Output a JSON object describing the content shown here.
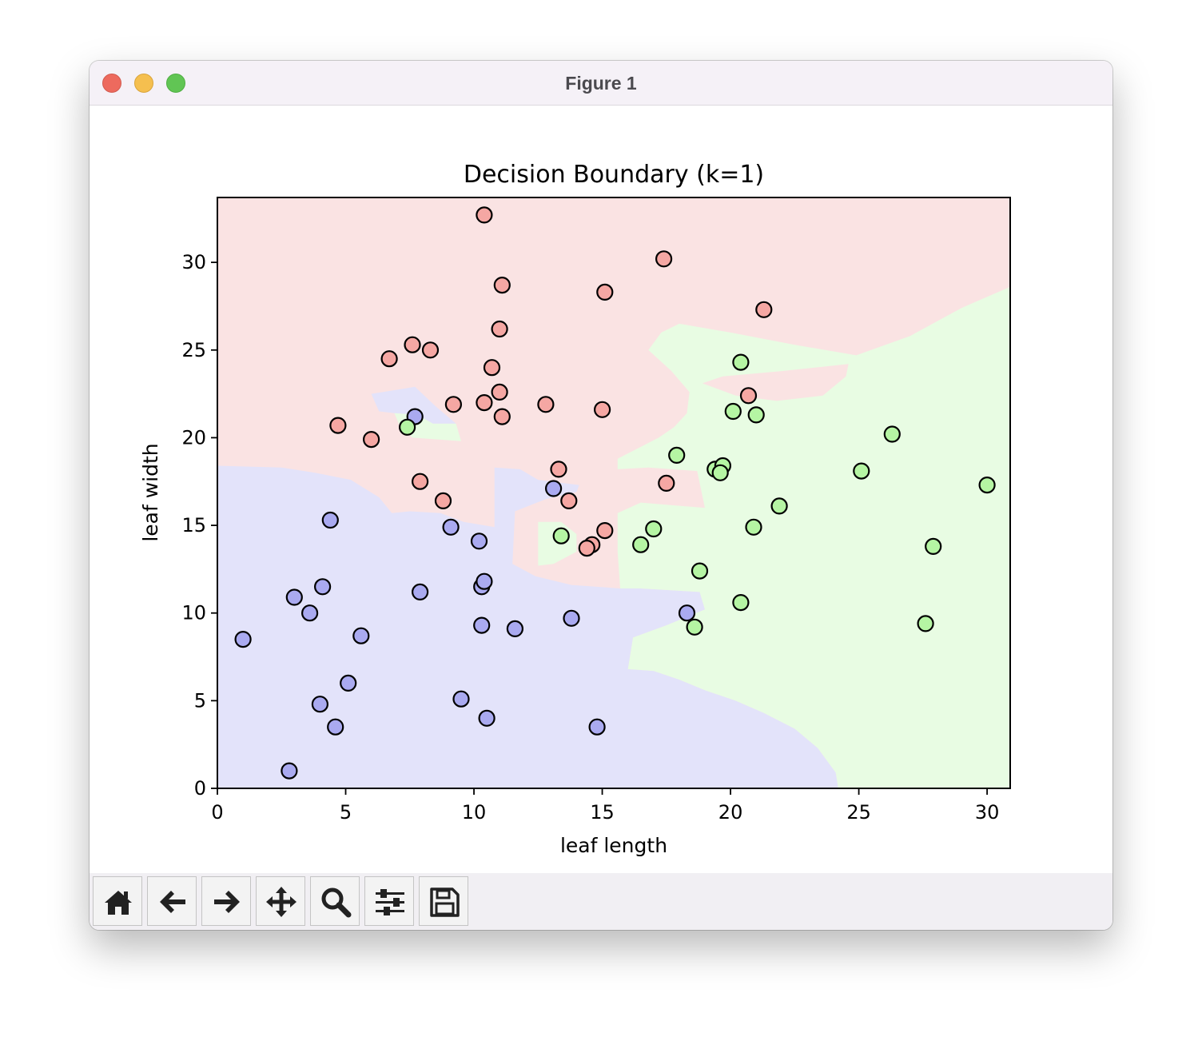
{
  "window": {
    "title": "Figure 1"
  },
  "toolbar": {
    "buttons": [
      {
        "name": "home-button",
        "icon": "home-icon"
      },
      {
        "name": "back-button",
        "icon": "arrow-left-icon"
      },
      {
        "name": "forward-button",
        "icon": "arrow-right-icon"
      },
      {
        "name": "pan-button",
        "icon": "move-icon"
      },
      {
        "name": "zoom-button",
        "icon": "zoom-icon"
      },
      {
        "name": "configure-subplots-button",
        "icon": "sliders-icon"
      },
      {
        "name": "save-button",
        "icon": "save-icon"
      }
    ]
  },
  "chart_data": {
    "type": "scatter",
    "title": "Decision Boundary (k=1)",
    "xlabel": "leaf length",
    "ylabel": "leaf width",
    "xlim": [
      0,
      30.9
    ],
    "ylim": [
      0,
      33.7
    ],
    "xticks": [
      "0",
      "5",
      "10",
      "15",
      "20",
      "25",
      "30"
    ],
    "yticks": [
      "0",
      "5",
      "10",
      "15",
      "20",
      "25",
      "30"
    ],
    "grid": false,
    "colors": {
      "red_region": "#fae3e3",
      "blue_region": "#e3e3fa",
      "green_region": "#e8fce3",
      "red_point": "#f5a7a3",
      "blue_point": "#aaaaf0",
      "green_point": "#b5f5a3",
      "edge": "#000000"
    },
    "regions": {
      "background_class": "red",
      "blue": [
        [
          [
            0,
            18.4
          ],
          [
            2.5,
            18.3
          ],
          [
            3.8,
            18
          ],
          [
            5.2,
            17.6
          ],
          [
            6.3,
            16.6
          ],
          [
            6.8,
            15.7
          ],
          [
            7.5,
            15.8
          ],
          [
            8.7,
            15.7
          ],
          [
            9.6,
            15.2
          ],
          [
            10.8,
            14.9
          ],
          [
            10.8,
            18.3
          ],
          [
            11.8,
            18.2
          ],
          [
            12.5,
            17.6
          ],
          [
            14.1,
            17.3
          ],
          [
            14,
            16.9
          ],
          [
            12.8,
            16.5
          ],
          [
            11.6,
            15.8
          ],
          [
            11.5,
            12.8
          ],
          [
            12.4,
            12.1
          ],
          [
            13.8,
            11.6
          ],
          [
            15.7,
            11.4
          ],
          [
            16.5,
            11.4
          ],
          [
            18.8,
            11.2
          ],
          [
            19,
            10.2
          ],
          [
            17.5,
            9.3
          ],
          [
            16.2,
            8.6
          ],
          [
            16,
            6.8
          ],
          [
            17,
            6.7
          ],
          [
            18,
            6.2
          ],
          [
            19,
            5.6
          ],
          [
            20.2,
            5
          ],
          [
            21.3,
            4.3
          ],
          [
            22.5,
            3.4
          ],
          [
            23.4,
            2.3
          ],
          [
            24.1,
            0.9
          ],
          [
            24.2,
            0
          ],
          [
            0,
            0
          ]
        ],
        [
          [
            6,
            22.5
          ],
          [
            7.7,
            22.9
          ],
          [
            8.5,
            21.8
          ],
          [
            9.3,
            20.8
          ],
          [
            8.4,
            20.8
          ],
          [
            7.8,
            21.3
          ],
          [
            6.9,
            21.4
          ],
          [
            6.3,
            21.5
          ]
        ]
      ],
      "green": [
        [
          [
            16.8,
            25
          ],
          [
            17.3,
            26
          ],
          [
            18,
            26.5
          ],
          [
            20,
            26
          ],
          [
            22.5,
            25.3
          ],
          [
            24.9,
            24.7
          ],
          [
            27,
            25.8
          ],
          [
            29,
            27.4
          ],
          [
            30.9,
            28.6
          ],
          [
            30.9,
            0
          ],
          [
            24.2,
            0
          ],
          [
            24.1,
            0.9
          ],
          [
            23.4,
            2.3
          ],
          [
            22.5,
            3.4
          ],
          [
            21.3,
            4.3
          ],
          [
            20.2,
            5
          ],
          [
            19,
            5.6
          ],
          [
            18,
            6.2
          ],
          [
            17,
            6.7
          ],
          [
            16,
            6.8
          ],
          [
            16.2,
            8.6
          ],
          [
            17.5,
            9.3
          ],
          [
            19,
            10.2
          ],
          [
            18.8,
            11.2
          ],
          [
            16.5,
            11.4
          ],
          [
            15.7,
            11.4
          ],
          [
            15.6,
            13.5
          ],
          [
            15.6,
            15.7
          ],
          [
            16.5,
            16.3
          ],
          [
            18.1,
            16.1
          ],
          [
            19,
            16
          ],
          [
            18.7,
            18.1
          ],
          [
            16.8,
            18.3
          ],
          [
            15.6,
            18.2
          ],
          [
            15.6,
            18.8
          ],
          [
            17.2,
            20
          ],
          [
            17.8,
            20.6
          ],
          [
            18.3,
            21.4
          ],
          [
            18.4,
            22.6
          ],
          [
            17.7,
            23.8
          ]
        ],
        [
          [
            12.5,
            15.2
          ],
          [
            13.4,
            15.2
          ],
          [
            14,
            14.5
          ],
          [
            14,
            13.5
          ],
          [
            13.1,
            12.8
          ],
          [
            12.5,
            12.7
          ]
        ],
        [
          [
            6.9,
            21.4
          ],
          [
            7.8,
            21.3
          ],
          [
            8.4,
            20.8
          ],
          [
            9.3,
            20.8
          ],
          [
            9.5,
            19.8
          ],
          [
            7.6,
            20
          ],
          [
            7.1,
            20.7
          ]
        ]
      ],
      "red_islands": [
        [
          [
            18.9,
            23.1
          ],
          [
            19.7,
            23.5
          ],
          [
            22,
            23.8
          ],
          [
            24.6,
            24.2
          ],
          [
            24.5,
            23.5
          ],
          [
            23.6,
            22.4
          ],
          [
            21.8,
            22.1
          ],
          [
            20.2,
            22.4
          ]
        ]
      ]
    },
    "series": [
      {
        "class": "red",
        "points": [
          [
            10.4,
            32.7
          ],
          [
            17.4,
            30.2
          ],
          [
            11.1,
            28.7
          ],
          [
            15.1,
            28.3
          ],
          [
            21.3,
            27.3
          ],
          [
            11.0,
            26.2
          ],
          [
            7.6,
            25.3
          ],
          [
            8.3,
            25.0
          ],
          [
            6.7,
            24.5
          ],
          [
            10.7,
            24.0
          ],
          [
            11.0,
            22.6
          ],
          [
            10.4,
            22.0
          ],
          [
            9.2,
            21.9
          ],
          [
            12.8,
            21.9
          ],
          [
            15.0,
            21.6
          ],
          [
            11.1,
            21.2
          ],
          [
            20.7,
            22.4
          ],
          [
            4.7,
            20.7
          ],
          [
            6.0,
            19.9
          ],
          [
            13.3,
            18.2
          ],
          [
            7.9,
            17.5
          ],
          [
            17.5,
            17.4
          ],
          [
            8.8,
            16.4
          ],
          [
            13.7,
            16.4
          ],
          [
            15.1,
            14.7
          ],
          [
            14.6,
            13.9
          ],
          [
            14.4,
            13.7
          ]
        ]
      },
      {
        "class": "blue",
        "points": [
          [
            7.7,
            21.2
          ],
          [
            13.1,
            17.1
          ],
          [
            4.4,
            15.3
          ],
          [
            9.1,
            14.9
          ],
          [
            10.2,
            14.1
          ],
          [
            4.1,
            11.5
          ],
          [
            10.3,
            11.5
          ],
          [
            10.4,
            11.8
          ],
          [
            3.0,
            10.9
          ],
          [
            7.9,
            11.2
          ],
          [
            3.6,
            10.0
          ],
          [
            18.3,
            10.0
          ],
          [
            13.8,
            9.7
          ],
          [
            10.3,
            9.3
          ],
          [
            11.6,
            9.1
          ],
          [
            1.0,
            8.5
          ],
          [
            5.6,
            8.7
          ],
          [
            5.1,
            6.0
          ],
          [
            9.5,
            5.1
          ],
          [
            4.0,
            4.8
          ],
          [
            4.6,
            3.5
          ],
          [
            10.5,
            4.0
          ],
          [
            14.8,
            3.5
          ],
          [
            2.8,
            1.0
          ]
        ]
      },
      {
        "class": "green",
        "points": [
          [
            7.4,
            20.6
          ],
          [
            20.4,
            24.3
          ],
          [
            20.1,
            21.5
          ],
          [
            21.0,
            21.3
          ],
          [
            17.9,
            19.0
          ],
          [
            26.3,
            20.2
          ],
          [
            19.4,
            18.2
          ],
          [
            19.7,
            18.4
          ],
          [
            19.6,
            18.0
          ],
          [
            25.1,
            18.1
          ],
          [
            30.0,
            17.3
          ],
          [
            21.9,
            16.1
          ],
          [
            17.0,
            14.8
          ],
          [
            20.9,
            14.9
          ],
          [
            13.4,
            14.4
          ],
          [
            16.5,
            13.9
          ],
          [
            27.9,
            13.8
          ],
          [
            18.8,
            12.4
          ],
          [
            20.4,
            10.6
          ],
          [
            18.6,
            9.2
          ],
          [
            27.6,
            9.4
          ]
        ]
      }
    ]
  }
}
